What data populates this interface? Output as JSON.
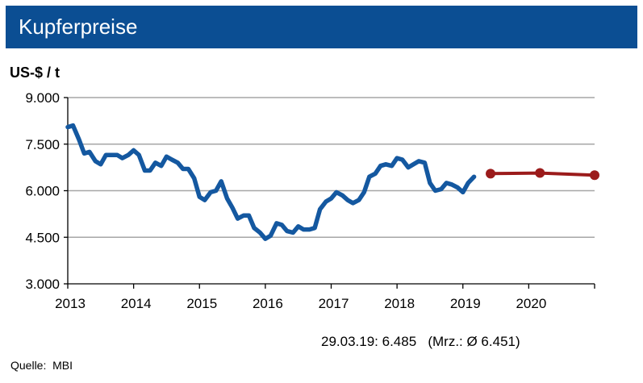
{
  "header": {
    "title": "Kupferpreise"
  },
  "footer": {
    "quote": "29.03.19: 6.485   (Mrz.: Ø 6.451)",
    "source": "Quelle:  MBI"
  },
  "colors": {
    "header_bg": "#0B4E93",
    "history_line": "#1458A0",
    "forecast_line": "#9B1B1B",
    "grid": "#A6A6A6"
  },
  "chart_data": {
    "type": "line",
    "title": "",
    "ylabel": "US-$ / t",
    "xlabel": "",
    "xlim": [
      2013.0,
      2021.0
    ],
    "ylim": [
      3000,
      9000
    ],
    "yticks": [
      {
        "value": 3000,
        "label": "3.000"
      },
      {
        "value": 4500,
        "label": "4.500"
      },
      {
        "value": 6000,
        "label": "6.000"
      },
      {
        "value": 7500,
        "label": "7.500"
      },
      {
        "value": 9000,
        "label": "9.000"
      }
    ],
    "xticks": [
      {
        "value": 2013,
        "label": "2013"
      },
      {
        "value": 2014,
        "label": "2014"
      },
      {
        "value": 2015,
        "label": "2015"
      },
      {
        "value": 2016,
        "label": "2016"
      },
      {
        "value": 2017,
        "label": "2017"
      },
      {
        "value": 2018,
        "label": "2018"
      },
      {
        "value": 2019,
        "label": "2019"
      },
      {
        "value": 2020,
        "label": "2020"
      }
    ],
    "grid": "horizontal",
    "series": [
      {
        "role": "history",
        "points": [
          [
            2013.0,
            8050
          ],
          [
            2013.08,
            8100
          ],
          [
            2013.17,
            7650
          ],
          [
            2013.25,
            7200
          ],
          [
            2013.33,
            7250
          ],
          [
            2013.42,
            6950
          ],
          [
            2013.5,
            6850
          ],
          [
            2013.58,
            7150
          ],
          [
            2013.67,
            7150
          ],
          [
            2013.75,
            7150
          ],
          [
            2013.83,
            7050
          ],
          [
            2013.92,
            7150
          ],
          [
            2014.0,
            7300
          ],
          [
            2014.08,
            7150
          ],
          [
            2014.17,
            6650
          ],
          [
            2014.25,
            6650
          ],
          [
            2014.33,
            6900
          ],
          [
            2014.42,
            6800
          ],
          [
            2014.5,
            7100
          ],
          [
            2014.58,
            7000
          ],
          [
            2014.67,
            6900
          ],
          [
            2014.75,
            6700
          ],
          [
            2014.83,
            6700
          ],
          [
            2014.92,
            6400
          ],
          [
            2015.0,
            5800
          ],
          [
            2015.08,
            5700
          ],
          [
            2015.17,
            5950
          ],
          [
            2015.25,
            6000
          ],
          [
            2015.33,
            6300
          ],
          [
            2015.42,
            5750
          ],
          [
            2015.5,
            5450
          ],
          [
            2015.58,
            5100
          ],
          [
            2015.67,
            5200
          ],
          [
            2015.75,
            5200
          ],
          [
            2015.83,
            4800
          ],
          [
            2015.92,
            4650
          ],
          [
            2016.0,
            4450
          ],
          [
            2016.08,
            4550
          ],
          [
            2016.17,
            4950
          ],
          [
            2016.25,
            4900
          ],
          [
            2016.33,
            4700
          ],
          [
            2016.42,
            4650
          ],
          [
            2016.5,
            4850
          ],
          [
            2016.58,
            4750
          ],
          [
            2016.67,
            4750
          ],
          [
            2016.75,
            4800
          ],
          [
            2016.83,
            5400
          ],
          [
            2016.92,
            5650
          ],
          [
            2017.0,
            5750
          ],
          [
            2017.08,
            5950
          ],
          [
            2017.17,
            5850
          ],
          [
            2017.25,
            5700
          ],
          [
            2017.33,
            5600
          ],
          [
            2017.42,
            5700
          ],
          [
            2017.5,
            5950
          ],
          [
            2017.58,
            6450
          ],
          [
            2017.67,
            6550
          ],
          [
            2017.75,
            6800
          ],
          [
            2017.83,
            6850
          ],
          [
            2017.92,
            6800
          ],
          [
            2018.0,
            7050
          ],
          [
            2018.08,
            7000
          ],
          [
            2018.17,
            6750
          ],
          [
            2018.25,
            6850
          ],
          [
            2018.33,
            6950
          ],
          [
            2018.42,
            6900
          ],
          [
            2018.5,
            6250
          ],
          [
            2018.58,
            6000
          ],
          [
            2018.67,
            6050
          ],
          [
            2018.75,
            6250
          ],
          [
            2018.83,
            6200
          ],
          [
            2018.92,
            6100
          ],
          [
            2019.0,
            5950
          ],
          [
            2019.08,
            6250
          ],
          [
            2019.17,
            6450
          ]
        ]
      },
      {
        "role": "forecast",
        "points": [
          [
            2019.42,
            6550
          ],
          [
            2020.17,
            6570
          ],
          [
            2021.0,
            6500
          ]
        ]
      }
    ]
  }
}
